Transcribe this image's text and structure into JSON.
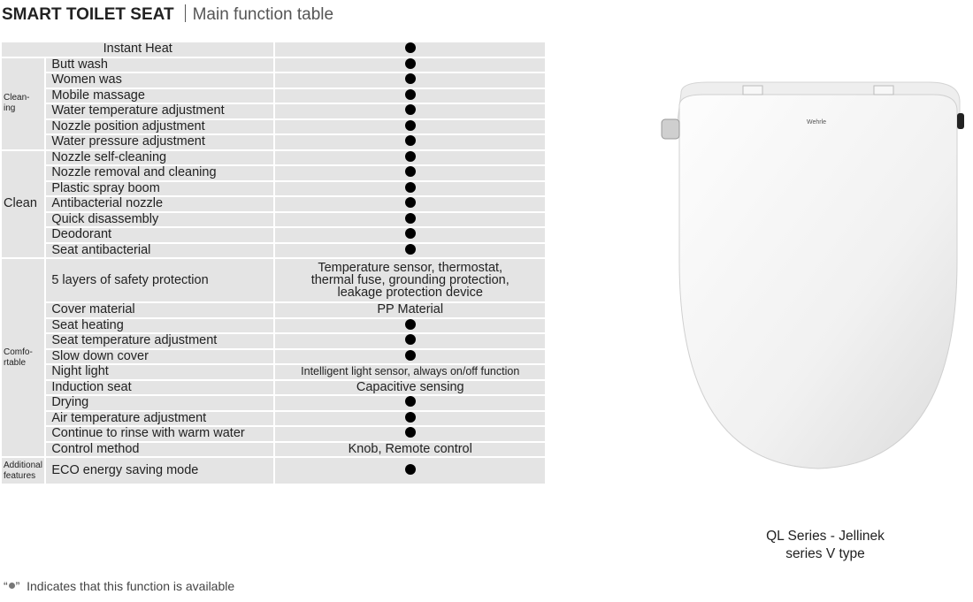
{
  "header": {
    "title": "SMART TOILET SEAT",
    "subtitle": "Main function table"
  },
  "table": {
    "top_row": {
      "feature": "Instant Heat",
      "value": "dot"
    },
    "groups": [
      {
        "category": "Clean-\ning",
        "rows": [
          {
            "feature": "Butt wash",
            "value": "dot"
          },
          {
            "feature": "Women was",
            "value": "dot"
          },
          {
            "feature": "Mobile massage",
            "value": "dot"
          },
          {
            "feature": "Water temperature adjustment",
            "value": "dot"
          },
          {
            "feature": "Nozzle position adjustment",
            "value": "dot"
          },
          {
            "feature": "Water pressure adjustment",
            "value": "dot"
          }
        ]
      },
      {
        "category": "Clean",
        "rows": [
          {
            "feature": "Nozzle self-cleaning",
            "value": "dot"
          },
          {
            "feature": "Nozzle removal and cleaning",
            "value": "dot"
          },
          {
            "feature": "Plastic spray boom",
            "value": "dot"
          },
          {
            "feature": "Antibacterial nozzle",
            "value": "dot"
          },
          {
            "feature": "Quick disassembly",
            "value": "dot"
          },
          {
            "feature": "Deodorant",
            "value": "dot"
          },
          {
            "feature": "Seat antibacterial",
            "value": "dot"
          }
        ]
      },
      {
        "category": "Comfo-\nrtable",
        "rows": [
          {
            "feature": "5 layers of safety protection",
            "value": "Temperature sensor, thermostat,\nthermal fuse, grounding protection,\nleakage protection device"
          },
          {
            "feature": "Cover material",
            "value": "PP Material"
          },
          {
            "feature": "Seat heating",
            "value": "dot"
          },
          {
            "feature": "Seat temperature adjustment",
            "value": "dot"
          },
          {
            "feature": "Slow down cover",
            "value": "dot"
          },
          {
            "feature": "Night light",
            "value": "Intelligent light sensor, always on/off function"
          },
          {
            "feature": "Induction seat",
            "value": "Capacitive sensing"
          },
          {
            "feature": "Drying",
            "value": "dot"
          },
          {
            "feature": "Air temperature adjustment",
            "value": "dot"
          },
          {
            "feature": "Continue to rinse with warm water",
            "value": "dot"
          },
          {
            "feature": "Control method",
            "value": "Knob, Remote control"
          }
        ]
      },
      {
        "category": "Additional\nfeatures",
        "rows": [
          {
            "feature": "ECO energy saving mode",
            "value": "dot"
          }
        ]
      }
    ]
  },
  "legend_note": {
    "open_quote": "“",
    "close_quote": "”",
    "text": "Indicates that this function is available"
  },
  "product": {
    "brand_logo": "Wehrle",
    "caption_line1": "QL Series - Jellinek",
    "caption_line2": "series V type"
  },
  "colors": {
    "cell_bg": "#e4e4e4",
    "dot": "#000000"
  }
}
